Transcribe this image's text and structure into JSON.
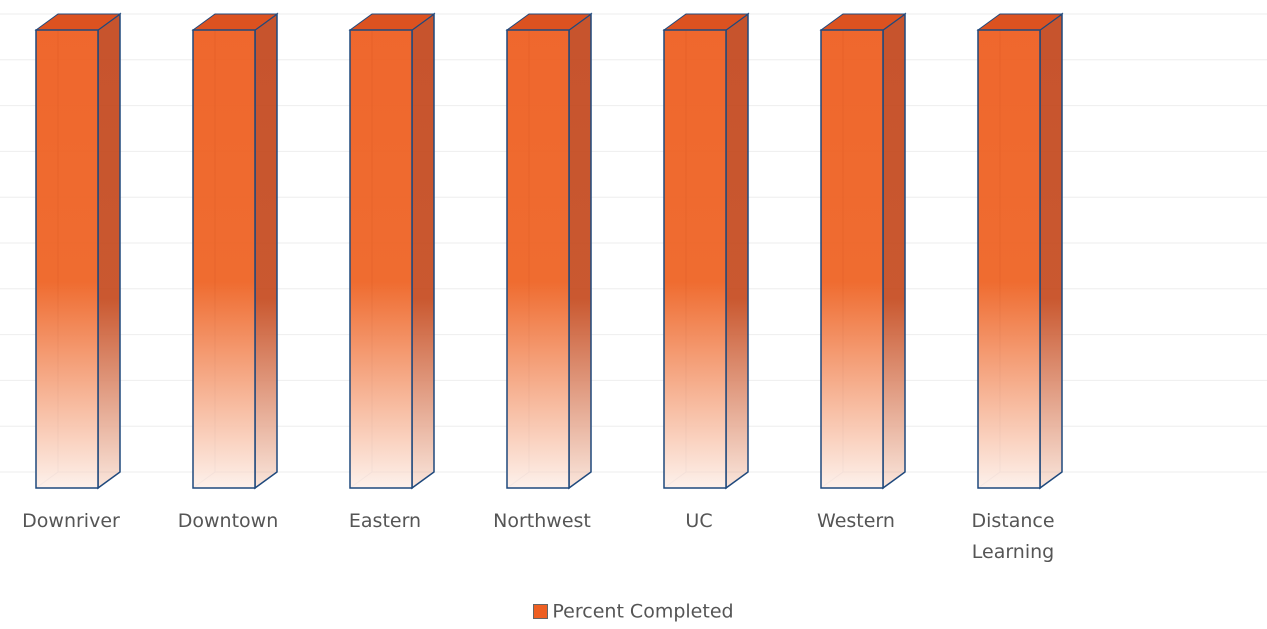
{
  "chart_data": {
    "type": "bar",
    "categories": [
      "Downriver",
      "Downtown",
      "Eastern",
      "Northwest",
      "UC",
      "Western",
      "Distance Learning"
    ],
    "series": [
      {
        "name": "Percent Completed",
        "values": [
          100,
          100,
          100,
          100,
          100,
          100,
          100
        ]
      }
    ],
    "ylim": [
      0,
      100
    ],
    "grid": true,
    "legend_position": "bottom",
    "bar_color": "#ee5f22",
    "bar_side_color": "#c2451b",
    "outline_color": "#1f497d"
  },
  "legend": {
    "label": "Percent Completed"
  }
}
